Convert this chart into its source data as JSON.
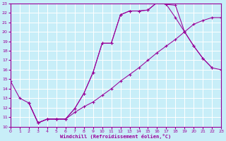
{
  "background_color": "#c8eef8",
  "grid_color": "#ffffff",
  "line_color": "#990099",
  "xlabel": "Windchill (Refroidissement éolien,°C)",
  "xlim": [
    0,
    23
  ],
  "ylim": [
    10,
    23
  ],
  "xticks": [
    0,
    1,
    2,
    3,
    4,
    5,
    6,
    7,
    8,
    9,
    10,
    11,
    12,
    13,
    14,
    15,
    16,
    17,
    18,
    19,
    20,
    21,
    22,
    23
  ],
  "yticks": [
    10,
    11,
    12,
    13,
    14,
    15,
    16,
    17,
    18,
    19,
    20,
    21,
    22,
    23
  ],
  "curve1_x": [
    0,
    1,
    2,
    3,
    4,
    5,
    6,
    7,
    8,
    9,
    10,
    11,
    12,
    13,
    14,
    15,
    16,
    17,
    18,
    19,
    20,
    21,
    22
  ],
  "curve1_y": [
    14.8,
    13.0,
    12.5,
    10.4,
    10.8,
    10.8,
    10.8,
    11.9,
    13.5,
    15.7,
    18.8,
    18.8,
    21.8,
    22.2,
    22.2,
    22.3,
    23.1,
    22.9,
    22.8,
    20.0,
    18.5,
    17.2,
    16.2
  ],
  "curve2_x": [
    2,
    3,
    4,
    5,
    6,
    7,
    8,
    9,
    10,
    11,
    12,
    13,
    14,
    15,
    16,
    17,
    18,
    19,
    20,
    21,
    22,
    23
  ],
  "curve2_y": [
    12.5,
    10.4,
    10.8,
    10.8,
    10.8,
    11.5,
    12.1,
    12.6,
    13.3,
    14.0,
    14.8,
    15.5,
    16.2,
    17.0,
    17.8,
    18.5,
    19.2,
    20.0,
    20.8,
    21.2,
    21.5,
    21.5
  ],
  "curve3_x": [
    2,
    3,
    4,
    5,
    6,
    7,
    8,
    9,
    10,
    11,
    12,
    13,
    14,
    15,
    16,
    17,
    18,
    19,
    20,
    21,
    22,
    23
  ],
  "curve3_y": [
    12.5,
    10.4,
    10.8,
    10.8,
    10.8,
    11.9,
    13.5,
    15.7,
    18.8,
    18.8,
    21.8,
    22.2,
    22.2,
    22.3,
    23.1,
    22.9,
    21.5,
    20.0,
    18.5,
    17.2,
    16.2,
    16.0
  ]
}
